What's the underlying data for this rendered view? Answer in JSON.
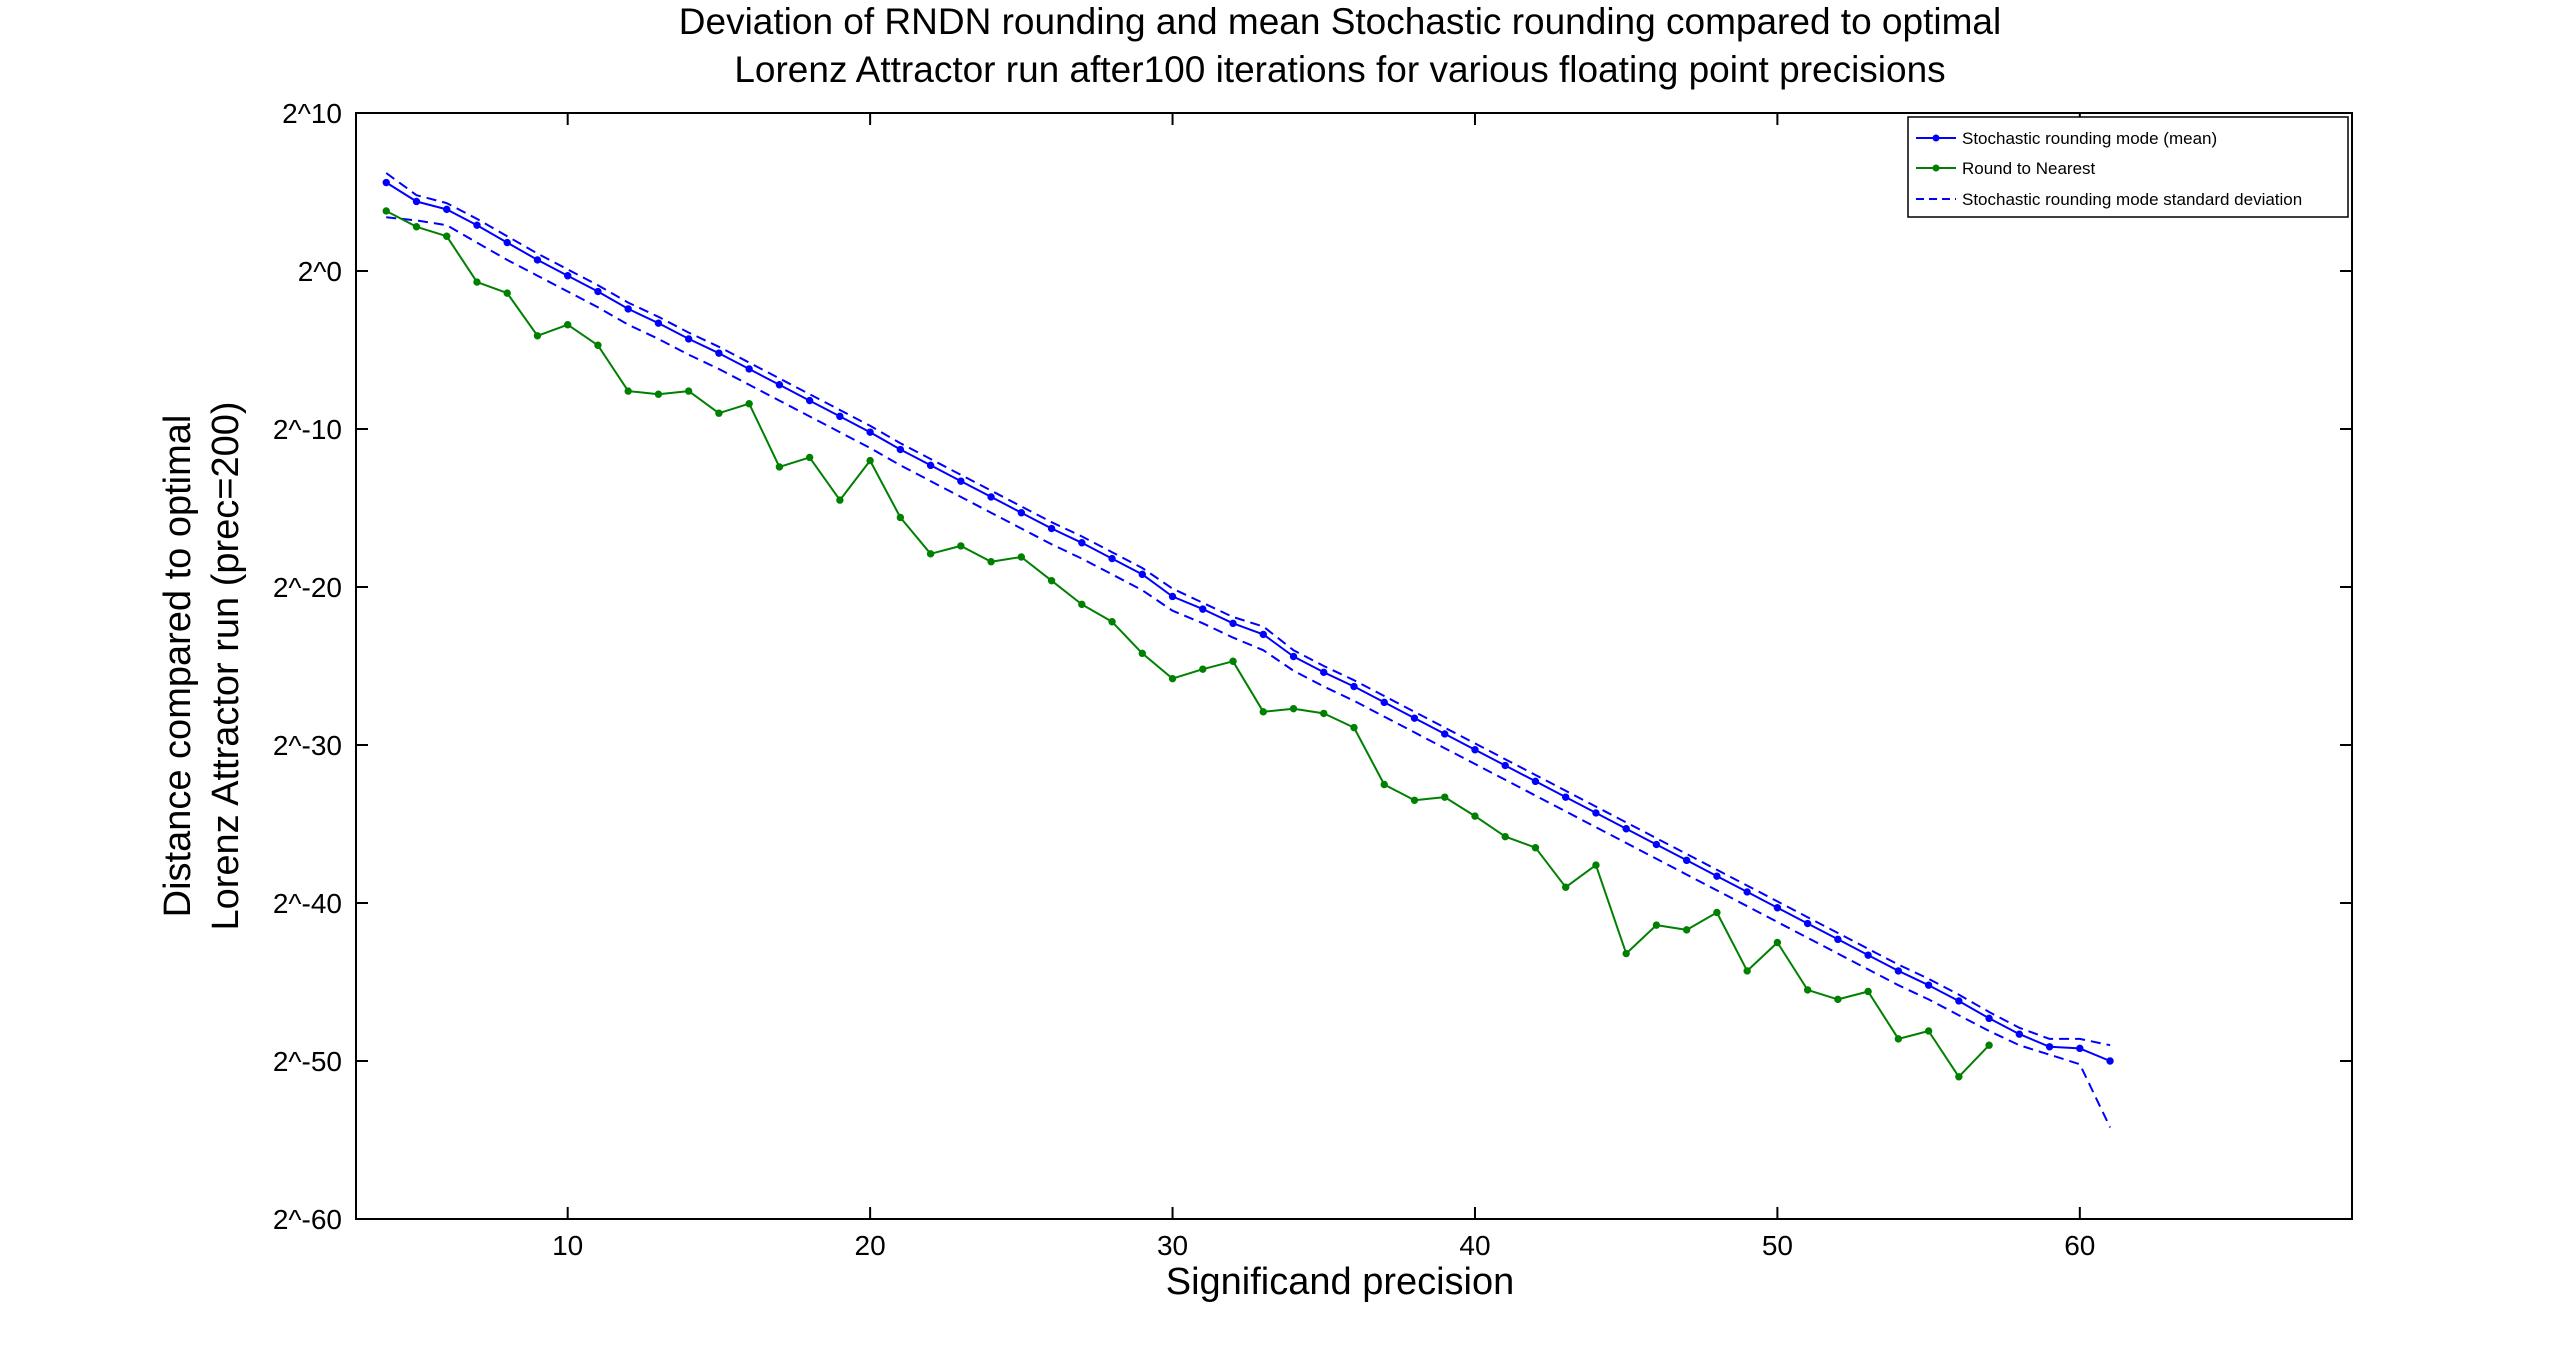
{
  "chart_data": {
    "type": "line",
    "title": [
      "Deviation of RNDN rounding and mean Stochastic rounding compared to optimal",
      "Lorenz Attractor run after100 iterations for various floating point precisions"
    ],
    "xlabel": "Significand precision",
    "ylabel": [
      "Distance compared to optimal",
      "Lorenz Attractor run (prec=200)"
    ],
    "xlim": [
      3,
      69
    ],
    "ylim": [
      -60,
      10
    ],
    "y_scale": "log2",
    "x_ticks": [
      10,
      20,
      30,
      40,
      50,
      60
    ],
    "y_ticks": [
      10,
      0,
      -10,
      -20,
      -30,
      -40,
      -50,
      -60
    ],
    "y_tick_labels": [
      "2^10",
      "2^0",
      "2^-10",
      "2^-20",
      "2^-30",
      "2^-40",
      "2^-50",
      "2^-60"
    ],
    "legend_position": "top-right",
    "grid": false,
    "legend": [
      {
        "label": "Stochastic rounding mode (mean)",
        "color": "#0000ff",
        "style": "solid-marker"
      },
      {
        "label": "Round to Nearest",
        "color": "#008000",
        "style": "solid-marker"
      },
      {
        "label": "Stochastic rounding mode standard deviation",
        "color": "#0000ff",
        "style": "dashed"
      }
    ],
    "series": [
      {
        "name": "Stochastic rounding mode (mean)",
        "color": "#0000ff",
        "style": "solid-marker",
        "x": [
          4,
          5,
          6,
          7,
          8,
          9,
          10,
          11,
          12,
          13,
          14,
          15,
          16,
          17,
          18,
          19,
          20,
          21,
          22,
          23,
          24,
          25,
          26,
          27,
          28,
          29,
          30,
          31,
          32,
          33,
          34,
          35,
          36,
          37,
          38,
          39,
          40,
          41,
          42,
          43,
          44,
          45,
          46,
          47,
          48,
          49,
          50,
          51,
          52,
          53,
          54,
          55,
          56,
          57,
          58,
          59,
          60,
          61
        ],
        "y": [
          5.6,
          4.4,
          3.9,
          2.9,
          1.8,
          0.7,
          -0.3,
          -1.3,
          -2.4,
          -3.3,
          -4.3,
          -5.2,
          -6.2,
          -7.2,
          -8.2,
          -9.2,
          -10.2,
          -11.3,
          -12.3,
          -13.3,
          -14.3,
          -15.3,
          -16.3,
          -17.2,
          -18.2,
          -19.2,
          -20.6,
          -21.4,
          -22.3,
          -23.0,
          -24.4,
          -25.4,
          -26.3,
          -27.3,
          -28.3,
          -29.3,
          -30.3,
          -31.3,
          -32.3,
          -33.3,
          -34.3,
          -35.3,
          -36.3,
          -37.3,
          -38.3,
          -39.3,
          -40.3,
          -41.3,
          -42.3,
          -43.3,
          -44.3,
          -45.2,
          -46.2,
          -47.3,
          -48.3,
          -49.1,
          -49.2,
          -50.0
        ]
      },
      {
        "name": "Round to Nearest",
        "color": "#008000",
        "style": "solid-marker",
        "x": [
          4,
          5,
          6,
          7,
          8,
          9,
          10,
          11,
          12,
          13,
          14,
          15,
          16,
          17,
          18,
          19,
          20,
          21,
          22,
          23,
          24,
          25,
          26,
          27,
          28,
          29,
          30,
          31,
          32,
          33,
          34,
          35,
          36,
          37,
          38,
          39,
          40,
          41,
          42,
          43,
          44,
          45,
          46,
          47,
          48,
          49,
          50,
          51,
          52,
          53,
          54,
          55,
          56,
          57
        ],
        "y": [
          3.8,
          2.8,
          2.2,
          -0.7,
          -1.4,
          -4.1,
          -3.4,
          -4.7,
          -7.6,
          -7.8,
          -7.6,
          -9.0,
          -8.4,
          -12.4,
          -11.8,
          -14.5,
          -12.0,
          -15.6,
          -17.9,
          -17.4,
          -18.4,
          -18.1,
          -19.6,
          -21.1,
          -22.2,
          -24.2,
          -25.8,
          -25.2,
          -24.7,
          -27.9,
          -27.7,
          -28.0,
          -28.9,
          -32.5,
          -33.5,
          -33.3,
          -34.5,
          -35.8,
          -36.5,
          -39.0,
          -37.6,
          -43.2,
          -41.4,
          -41.7,
          -40.6,
          -44.3,
          -42.5,
          -45.5,
          -46.1,
          -45.6,
          -48.6,
          -48.1,
          -51.0,
          -49.0
        ]
      },
      {
        "name": "Stochastic rounding mode standard deviation (upper)",
        "color": "#0000ff",
        "style": "dashed",
        "x": [
          4,
          5,
          6,
          7,
          8,
          9,
          10,
          11,
          12,
          13,
          14,
          15,
          16,
          17,
          18,
          19,
          20,
          21,
          22,
          23,
          24,
          25,
          26,
          27,
          28,
          29,
          30,
          31,
          32,
          33,
          34,
          35,
          36,
          37,
          38,
          39,
          40,
          41,
          42,
          43,
          44,
          45,
          46,
          47,
          48,
          49,
          50,
          51,
          52,
          53,
          54,
          55,
          56,
          57,
          58,
          59,
          60,
          61
        ],
        "y": [
          6.2,
          4.8,
          4.3,
          3.3,
          2.2,
          1.1,
          0.1,
          -0.9,
          -2.0,
          -2.9,
          -3.9,
          -4.8,
          -5.8,
          -6.8,
          -7.8,
          -8.8,
          -9.8,
          -10.9,
          -11.9,
          -12.9,
          -13.9,
          -14.9,
          -15.9,
          -16.8,
          -17.8,
          -18.8,
          -20.1,
          -21.0,
          -21.9,
          -22.5,
          -24.0,
          -25.0,
          -25.9,
          -26.9,
          -27.9,
          -28.9,
          -29.9,
          -30.9,
          -31.9,
          -32.9,
          -33.9,
          -34.9,
          -35.9,
          -36.9,
          -37.9,
          -38.9,
          -39.9,
          -40.9,
          -41.9,
          -42.9,
          -43.9,
          -44.8,
          -45.8,
          -46.9,
          -47.9,
          -48.6,
          -48.6,
          -49.0
        ]
      },
      {
        "name": "Stochastic rounding mode standard deviation (lower)",
        "color": "#0000ff",
        "style": "dashed",
        "x": [
          4,
          5,
          6,
          7,
          8,
          9,
          10,
          11,
          12,
          13,
          14,
          15,
          16,
          17,
          18,
          19,
          20,
          21,
          22,
          23,
          24,
          25,
          26,
          27,
          28,
          29,
          30,
          31,
          32,
          33,
          34,
          35,
          36,
          37,
          38,
          39,
          40,
          41,
          42,
          43,
          44,
          45,
          46,
          47,
          48,
          49,
          50,
          51,
          52,
          53,
          54,
          55,
          56,
          57,
          58,
          59,
          60,
          61
        ],
        "y": [
          3.4,
          3.2,
          2.9,
          1.8,
          0.7,
          -0.3,
          -1.3,
          -2.3,
          -3.4,
          -4.3,
          -5.3,
          -6.2,
          -7.2,
          -8.2,
          -9.2,
          -10.2,
          -11.2,
          -12.3,
          -13.3,
          -14.3,
          -15.3,
          -16.3,
          -17.3,
          -18.2,
          -19.2,
          -20.2,
          -21.5,
          -22.3,
          -23.2,
          -24.0,
          -25.3,
          -26.3,
          -27.2,
          -28.2,
          -29.2,
          -30.2,
          -31.2,
          -32.2,
          -33.2,
          -34.2,
          -35.2,
          -36.2,
          -37.2,
          -38.2,
          -39.2,
          -40.2,
          -41.2,
          -42.2,
          -43.2,
          -44.2,
          -45.2,
          -46.1,
          -47.1,
          -48.1,
          -49.0,
          -49.6,
          -50.2,
          -54.2
        ]
      }
    ]
  }
}
